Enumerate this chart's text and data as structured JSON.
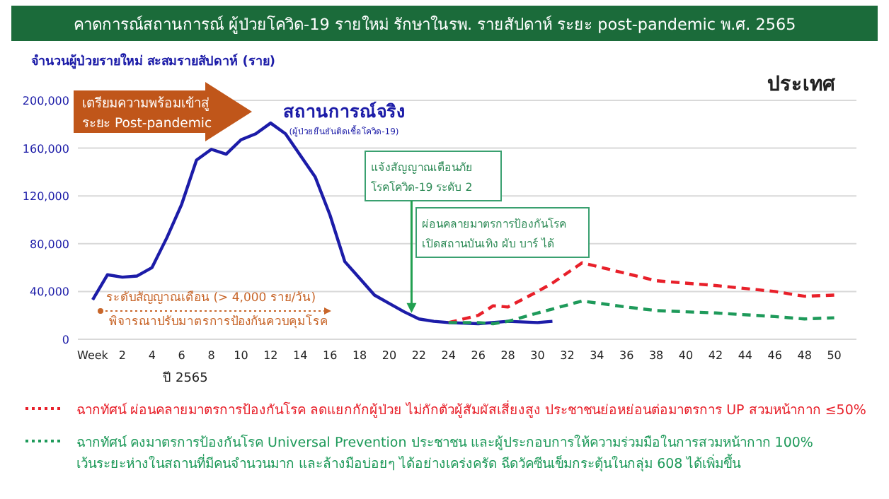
{
  "chart_data": {
    "type": "line",
    "title": "คาดการณ์สถานการณ์ ผู้ป่วยโควิด-19 รายใหม่ รักษาในรพ. รายสัปดาห์ ระยะ post-pandemic พ.ศ. 2565",
    "subtitle": "ประเทศ",
    "ylabel": "จำนวนผู้ป่วยรายใหม่ สะสมรายสัปดาห์ (ราย)",
    "xlabel": "ปี 2565",
    "xlim": [
      -1,
      51.5
    ],
    "xticks": [
      {
        "value": 0,
        "label": "Week"
      },
      2,
      4,
      6,
      8,
      10,
      12,
      14,
      16,
      18,
      20,
      22,
      24,
      26,
      28,
      30,
      32,
      34,
      36,
      38,
      40,
      42,
      44,
      46,
      48,
      50
    ],
    "ylim": [
      0,
      200000
    ],
    "yticks": [
      0,
      {
        "value": 40000,
        "label": "40,000"
      },
      {
        "value": 80000,
        "label": "80,000"
      },
      {
        "value": 120000,
        "label": "120,000"
      },
      {
        "value": 160000,
        "label": "160,000"
      },
      {
        "value": 200000,
        "label": "200,000"
      }
    ],
    "grid": "y",
    "legend": "bottom",
    "marker": "none",
    "series": [
      {
        "name": "สถานการณ์จริง",
        "color": "#1c1ca8",
        "line_style": "solid",
        "x": [
          0,
          1,
          2,
          3,
          4,
          5,
          6,
          7,
          8,
          9,
          10,
          11,
          12,
          13,
          14,
          15,
          16,
          17,
          18,
          19,
          20,
          21,
          22,
          23,
          24,
          26,
          28,
          30,
          31
        ],
        "values": [
          33000,
          54000,
          52000,
          53000,
          60000,
          85000,
          113000,
          150000,
          159000,
          155000,
          167000,
          172000,
          181000,
          172000,
          154000,
          136000,
          104000,
          65000,
          51000,
          37000,
          30000,
          23000,
          17000,
          15000,
          14000,
          13000,
          15000,
          14000,
          15000
        ]
      },
      {
        "name": "ฉากทัศน์ ผ่อนคลายมาตรการป้องกันโรค ลดแยกกักผู้ป่วย ไม่กักตัวผู้สัมผัสเสี่ยงสูง ประชาชนย่อหย่อนต่อมาตรการ UP สวมหน้ากาก ≤50%",
        "color": "#e8202a",
        "line_style": "dashed",
        "x": [
          24,
          26,
          27,
          28,
          30,
          31,
          33,
          36,
          38,
          42,
          46,
          48,
          50
        ],
        "values": [
          14000,
          20000,
          28000,
          27000,
          40000,
          47000,
          64000,
          55000,
          49000,
          45000,
          40000,
          36000,
          37000
        ]
      },
      {
        "name": "ฉากทัศน์ คงมาตรการป้องกันโรค Universal Prevention ประชาชน และผู้ประกอบการให้ความร่วมมือในการสวมหน้ากาก 100% เว้นระยะห่างในสถานที่มีคนจำนวนมาก และล้างมือบ่อยๆ ได้อย่างเคร่งครัด ฉีดวัคซีนเข็มกระตุ้นในกลุ่ม 608 ได้เพิ่มขึ้น",
        "color": "#1e9a5a",
        "line_style": "dashed",
        "x": [
          24,
          26,
          27,
          28,
          30,
          33,
          36,
          38,
          42,
          46,
          48,
          50
        ],
        "values": [
          14000,
          14000,
          13000,
          15000,
          22000,
          32000,
          27000,
          24000,
          22000,
          19000,
          17000,
          18000
        ]
      }
    ],
    "annotations": [
      "เตรียมความพร้อมเข้าสู่\nระยะ Post-pandemic",
      "(ผู้ป่วยยืนยันติดเชื้อโควิด-19)",
      {
        "text": "แจ้งสัญญาณเตือนภัย\nโรคโควิด-19 ระดับ 2",
        "x": 21.5,
        "y": 22000
      },
      "ผ่อนคลายมาตรการป้องกันโรค\nเปิดสถานบันเทิง ผับ บาร์ ได้",
      "ระดับสัญญาณเตือน (> 4,000 ราย/วัน)",
      "พิจารณาปรับมาตรการป้องกันควบคุมโรค"
    ]
  }
}
